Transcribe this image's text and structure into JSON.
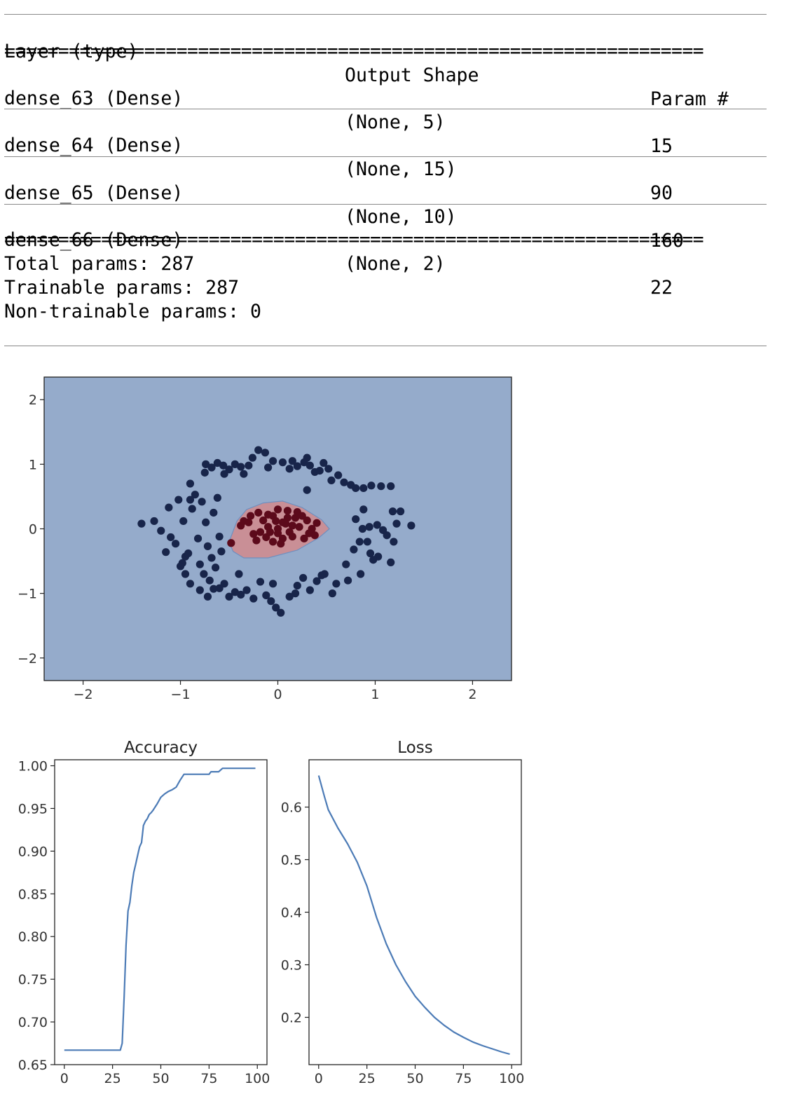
{
  "summary": {
    "headers": [
      "Layer (type)",
      "Output Shape",
      "Param #"
    ],
    "double_rule": "=================================================================",
    "rows": [
      {
        "layer": "dense_63 (Dense)",
        "shape": "(None, 5)",
        "params": "15"
      },
      {
        "layer": "dense_64 (Dense)",
        "shape": "(None, 15)",
        "params": "90"
      },
      {
        "layer": "dense_65 (Dense)",
        "shape": "(None, 10)",
        "params": "160"
      },
      {
        "layer": "dense_66 (Dense)",
        "shape": "(None, 2)",
        "params": "22"
      }
    ],
    "total": "Total params: 287",
    "trainable": "Trainable params: 287",
    "non_trainable": "Non-trainable params: 0"
  },
  "colors": {
    "background_region": "#95abcb",
    "decision_region": "#c98f96",
    "outer_points": "#18254a",
    "inner_points": "#5c0a1b",
    "line": "#4c7bb6"
  },
  "chart_data": [
    {
      "type": "scatter",
      "title": "",
      "xlabel": "",
      "ylabel": "",
      "xlim": [
        -2.4,
        2.4
      ],
      "ylim": [
        -2.35,
        2.35
      ],
      "xticks": [
        -2,
        -1,
        0,
        1,
        2
      ],
      "yticks": [
        -2,
        -1,
        0,
        1,
        2
      ],
      "xtick_labels": [
        "−2",
        "−1",
        "0",
        "1",
        "2"
      ],
      "ytick_labels": [
        "−2",
        "−1",
        "0",
        "1",
        "2"
      ],
      "decision_boundary": [
        [
          -0.5,
          -0.2
        ],
        [
          -0.42,
          0.12
        ],
        [
          -0.32,
          0.3
        ],
        [
          -0.15,
          0.4
        ],
        [
          0.05,
          0.43
        ],
        [
          0.25,
          0.33
        ],
        [
          0.45,
          0.14
        ],
        [
          0.53,
          0.0
        ],
        [
          0.42,
          -0.14
        ],
        [
          0.2,
          -0.33
        ],
        [
          -0.1,
          -0.45
        ],
        [
          -0.35,
          -0.45
        ],
        [
          -0.46,
          -0.35
        ]
      ],
      "series": [
        {
          "class": 0,
          "points": [
            [
              -1.4,
              0.08
            ],
            [
              -1.27,
              0.12
            ],
            [
              -1.12,
              0.33
            ],
            [
              -1.2,
              -0.03
            ],
            [
              -1.15,
              -0.36
            ],
            [
              -1.1,
              -0.13
            ],
            [
              -1.05,
              -0.23
            ],
            [
              -1.02,
              0.45
            ],
            [
              -0.98,
              -0.53
            ],
            [
              -0.97,
              0.12
            ],
            [
              -0.95,
              -0.43
            ],
            [
              -0.92,
              -0.38
            ],
            [
              -0.9,
              0.7
            ],
            [
              -0.88,
              0.31
            ],
            [
              -0.85,
              0.53
            ],
            [
              -0.82,
              -0.15
            ],
            [
              -0.8,
              -0.55
            ],
            [
              -0.78,
              0.42
            ],
            [
              -0.76,
              -0.7
            ],
            [
              -0.74,
              0.1
            ],
            [
              -0.72,
              -0.27
            ],
            [
              -0.7,
              -0.8
            ],
            [
              -0.68,
              -0.45
            ],
            [
              -0.66,
              0.25
            ],
            [
              -0.64,
              -0.6
            ],
            [
              -0.62,
              0.48
            ],
            [
              -0.6,
              -0.12
            ],
            [
              -0.58,
              -0.35
            ],
            [
              -0.75,
              0.87
            ],
            [
              -0.74,
              1.0
            ],
            [
              -0.68,
              0.95
            ],
            [
              -0.62,
              1.02
            ],
            [
              -0.56,
              0.98
            ],
            [
              -0.5,
              0.92
            ],
            [
              -0.44,
              1.0
            ],
            [
              -0.38,
              0.96
            ],
            [
              -0.35,
              0.85
            ],
            [
              -0.3,
              0.98
            ],
            [
              -0.26,
              1.1
            ],
            [
              -0.2,
              1.22
            ],
            [
              -0.13,
              1.18
            ],
            [
              -0.05,
              1.05
            ],
            [
              0.05,
              1.03
            ],
            [
              0.12,
              0.93
            ],
            [
              0.2,
              0.97
            ],
            [
              0.27,
              1.03
            ],
            [
              0.33,
              0.98
            ],
            [
              0.38,
              0.88
            ],
            [
              0.43,
              0.9
            ],
            [
              0.47,
              1.02
            ],
            [
              0.52,
              0.93
            ],
            [
              0.55,
              0.75
            ],
            [
              0.62,
              0.83
            ],
            [
              0.68,
              0.72
            ],
            [
              0.75,
              0.68
            ],
            [
              0.8,
              0.63
            ],
            [
              0.88,
              0.63
            ],
            [
              0.96,
              0.67
            ],
            [
              1.06,
              0.66
            ],
            [
              1.16,
              0.66
            ],
            [
              1.18,
              0.27
            ],
            [
              1.26,
              0.27
            ],
            [
              1.22,
              0.08
            ],
            [
              1.37,
              0.05
            ],
            [
              1.08,
              -0.02
            ],
            [
              1.02,
              0.06
            ],
            [
              0.94,
              0.03
            ],
            [
              0.87,
              0.0
            ],
            [
              1.12,
              -0.1
            ],
            [
              1.19,
              -0.2
            ],
            [
              0.84,
              -0.2
            ],
            [
              0.78,
              -0.32
            ],
            [
              0.95,
              -0.38
            ],
            [
              1.03,
              -0.43
            ],
            [
              1.16,
              -0.52
            ],
            [
              0.98,
              -0.48
            ],
            [
              0.85,
              -0.7
            ],
            [
              0.72,
              -0.8
            ],
            [
              0.6,
              -0.85
            ],
            [
              0.56,
              -1.0
            ],
            [
              0.48,
              -0.7
            ],
            [
              0.4,
              -0.81
            ],
            [
              0.33,
              -0.95
            ],
            [
              0.26,
              -0.76
            ],
            [
              0.18,
              -1.0
            ],
            [
              0.12,
              -1.05
            ],
            [
              0.03,
              -1.3
            ],
            [
              -0.02,
              -1.22
            ],
            [
              -0.07,
              -1.12
            ],
            [
              -0.12,
              -1.03
            ],
            [
              -0.18,
              -0.82
            ],
            [
              -0.25,
              -1.08
            ],
            [
              -0.32,
              -0.95
            ],
            [
              -0.38,
              -1.02
            ],
            [
              -0.44,
              -0.98
            ],
            [
              -0.5,
              -1.05
            ],
            [
              -0.55,
              -0.85
            ],
            [
              -0.6,
              -0.92
            ],
            [
              -0.66,
              -0.93
            ],
            [
              -0.72,
              -1.05
            ],
            [
              -0.8,
              -0.95
            ],
            [
              -0.9,
              -0.85
            ],
            [
              -0.95,
              -0.7
            ],
            [
              -1.0,
              -0.58
            ],
            [
              0.45,
              -0.72
            ],
            [
              0.2,
              -0.88
            ],
            [
              -0.4,
              -0.7
            ],
            [
              -0.05,
              -0.85
            ],
            [
              0.3,
              1.1
            ],
            [
              0.15,
              1.05
            ],
            [
              0.7,
              -0.55
            ],
            [
              0.88,
              0.3
            ],
            [
              0.8,
              0.15
            ],
            [
              -0.9,
              0.45
            ],
            [
              -0.55,
              0.85
            ],
            [
              0.3,
              0.6
            ],
            [
              0.92,
              -0.2
            ],
            [
              -0.1,
              0.95
            ]
          ]
        },
        {
          "class": 1,
          "points": [
            [
              -0.48,
              -0.22
            ],
            [
              -0.38,
              0.05
            ],
            [
              -0.3,
              0.1
            ],
            [
              -0.25,
              -0.08
            ],
            [
              -0.2,
              0.25
            ],
            [
              -0.15,
              0.13
            ],
            [
              -0.1,
              0.03
            ],
            [
              -0.05,
              0.2
            ],
            [
              0.0,
              -0.07
            ],
            [
              0.05,
              0.1
            ],
            [
              0.1,
              0.28
            ],
            [
              0.12,
              -0.05
            ],
            [
              0.18,
              0.17
            ],
            [
              0.22,
              0.03
            ],
            [
              0.27,
              -0.15
            ],
            [
              0.3,
              0.13
            ],
            [
              0.35,
              0.0
            ],
            [
              0.4,
              0.09
            ],
            [
              0.1,
              0.17
            ],
            [
              0.0,
              0.3
            ],
            [
              -0.1,
              0.22
            ],
            [
              -0.18,
              -0.05
            ],
            [
              0.05,
              -0.15
            ],
            [
              0.15,
              -0.12
            ],
            [
              -0.05,
              -0.2
            ],
            [
              0.2,
              0.26
            ],
            [
              -0.28,
              0.2
            ],
            [
              -0.12,
              -0.13
            ],
            [
              0.25,
              0.2
            ],
            [
              -0.35,
              0.12
            ],
            [
              0.08,
              0.08
            ],
            [
              -0.02,
              0.12
            ],
            [
              0.0,
              0.0
            ],
            [
              0.15,
              0.05
            ],
            [
              -0.08,
              -0.05
            ],
            [
              0.03,
              -0.23
            ],
            [
              -0.22,
              -0.18
            ],
            [
              0.32,
              -0.07
            ],
            [
              0.38,
              -0.1
            ]
          ]
        }
      ]
    },
    {
      "type": "line",
      "title": "Accuracy",
      "xlabel": "",
      "ylabel": "",
      "xlim": [
        -5,
        105
      ],
      "ylim": [
        0.65,
        1.007
      ],
      "xticks": [
        0,
        25,
        50,
        75,
        100
      ],
      "yticks": [
        0.65,
        0.7,
        0.75,
        0.8,
        0.85,
        0.9,
        0.95,
        1.0
      ],
      "ytick_labels": [
        "0.65",
        "0.70",
        "0.75",
        "0.80",
        "0.85",
        "0.90",
        "0.95",
        "1.00"
      ],
      "x": [
        0,
        29,
        30,
        31,
        32,
        33,
        34,
        35,
        36,
        37,
        38,
        39,
        40,
        41,
        42,
        43,
        44,
        45,
        46,
        48,
        50,
        52,
        54,
        56,
        58,
        60,
        62,
        64,
        66,
        70,
        75,
        76,
        80,
        82,
        99
      ],
      "values": [
        0.667,
        0.667,
        0.675,
        0.73,
        0.79,
        0.83,
        0.84,
        0.86,
        0.875,
        0.885,
        0.895,
        0.905,
        0.91,
        0.93,
        0.935,
        0.938,
        0.943,
        0.945,
        0.948,
        0.955,
        0.963,
        0.967,
        0.97,
        0.972,
        0.975,
        0.983,
        0.99,
        0.99,
        0.99,
        0.99,
        0.99,
        0.993,
        0.993,
        0.997,
        0.997
      ]
    },
    {
      "type": "line",
      "title": "Loss",
      "xlabel": "",
      "ylabel": "",
      "xlim": [
        -5,
        105
      ],
      "ylim": [
        0.11,
        0.69
      ],
      "xticks": [
        0,
        25,
        50,
        75,
        100
      ],
      "yticks": [
        0.2,
        0.3,
        0.4,
        0.5,
        0.6
      ],
      "ytick_labels": [
        "0.2",
        "0.3",
        "0.4",
        "0.5",
        "0.6"
      ],
      "x": [
        0,
        3,
        5,
        10,
        15,
        20,
        25,
        30,
        35,
        40,
        45,
        50,
        55,
        60,
        65,
        70,
        75,
        80,
        85,
        90,
        95,
        99
      ],
      "values": [
        0.66,
        0.62,
        0.595,
        0.56,
        0.53,
        0.495,
        0.45,
        0.39,
        0.34,
        0.3,
        0.268,
        0.24,
        0.219,
        0.2,
        0.185,
        0.172,
        0.162,
        0.153,
        0.146,
        0.14,
        0.134,
        0.13
      ]
    }
  ]
}
